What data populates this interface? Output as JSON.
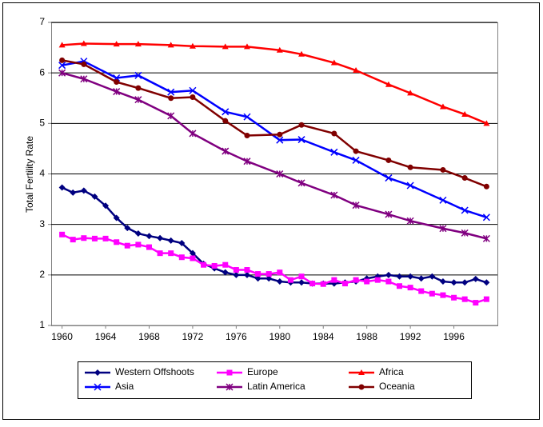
{
  "chart_data": {
    "type": "line",
    "y_label": "Total Fertility Rate",
    "xlim": [
      1959,
      2000
    ],
    "xticks": [
      1960,
      1964,
      1968,
      1972,
      1976,
      1980,
      1984,
      1988,
      1992,
      1996
    ],
    "ylim": [
      1,
      7
    ],
    "yticks": [
      1,
      2,
      3,
      4,
      5,
      6,
      7
    ],
    "grid": true,
    "legend": "bottom",
    "series": [
      {
        "name": "Western Offshoots",
        "color": "#000080",
        "marker": "diamond",
        "x": [
          1960,
          1961,
          1962,
          1963,
          1964,
          1965,
          1966,
          1967,
          1968,
          1969,
          1970,
          1971,
          1972,
          1973,
          1974,
          1975,
          1976,
          1977,
          1978,
          1979,
          1980,
          1981,
          1982,
          1983,
          1984,
          1985,
          1986,
          1987,
          1988,
          1989,
          1990,
          1991,
          1992,
          1993,
          1994,
          1995,
          1996,
          1997,
          1998,
          1999
        ],
        "values": [
          3.73,
          3.63,
          3.67,
          3.55,
          3.37,
          3.13,
          2.93,
          2.82,
          2.77,
          2.73,
          2.68,
          2.63,
          2.43,
          2.22,
          2.13,
          2.05,
          2.0,
          2.0,
          1.93,
          1.93,
          1.87,
          1.85,
          1.85,
          1.83,
          1.83,
          1.83,
          1.85,
          1.87,
          1.93,
          1.97,
          2.0,
          1.97,
          1.97,
          1.93,
          1.97,
          1.87,
          1.85,
          1.85,
          1.92,
          1.85
        ]
      },
      {
        "name": "Europe",
        "color": "#ff00ff",
        "marker": "square",
        "x": [
          1960,
          1961,
          1962,
          1963,
          1964,
          1965,
          1966,
          1967,
          1968,
          1969,
          1970,
          1971,
          1972,
          1973,
          1974,
          1975,
          1976,
          1977,
          1978,
          1979,
          1980,
          1981,
          1982,
          1983,
          1984,
          1985,
          1986,
          1987,
          1988,
          1989,
          1990,
          1991,
          1992,
          1993,
          1994,
          1995,
          1996,
          1997,
          1998,
          1999
        ],
        "values": [
          2.8,
          2.7,
          2.73,
          2.72,
          2.72,
          2.65,
          2.58,
          2.6,
          2.55,
          2.43,
          2.43,
          2.35,
          2.33,
          2.2,
          2.18,
          2.2,
          2.1,
          2.1,
          2.02,
          2.02,
          2.05,
          1.9,
          1.97,
          1.83,
          1.82,
          1.9,
          1.83,
          1.9,
          1.87,
          1.9,
          1.87,
          1.78,
          1.75,
          1.68,
          1.63,
          1.6,
          1.55,
          1.52,
          1.45,
          1.52
        ]
      },
      {
        "name": "Africa",
        "color": "#ff0000",
        "marker": "triangle",
        "x": [
          1960,
          1962,
          1965,
          1967,
          1970,
          1972,
          1975,
          1977,
          1980,
          1982,
          1985,
          1987,
          1990,
          1992,
          1995,
          1997,
          1999
        ],
        "values": [
          6.55,
          6.58,
          6.57,
          6.57,
          6.55,
          6.53,
          6.52,
          6.52,
          6.45,
          6.37,
          6.2,
          6.05,
          5.77,
          5.6,
          5.33,
          5.18,
          5.0
        ]
      },
      {
        "name": "Asia",
        "color": "#0000ff",
        "marker": "x",
        "x": [
          1960,
          1962,
          1965,
          1967,
          1970,
          1972,
          1975,
          1977,
          1980,
          1982,
          1985,
          1987,
          1990,
          1992,
          1995,
          1997,
          1999
        ],
        "values": [
          6.15,
          6.23,
          5.9,
          5.95,
          5.62,
          5.65,
          5.23,
          5.13,
          4.67,
          4.68,
          4.43,
          4.27,
          3.92,
          3.77,
          3.48,
          3.28,
          3.14
        ]
      },
      {
        "name": "Latin America",
        "color": "#800080",
        "marker": "star",
        "x": [
          1960,
          1962,
          1965,
          1967,
          1970,
          1972,
          1975,
          1977,
          1980,
          1982,
          1985,
          1987,
          1990,
          1992,
          1995,
          1997,
          1999
        ],
        "values": [
          6.0,
          5.88,
          5.63,
          5.47,
          5.15,
          4.8,
          4.45,
          4.25,
          4.0,
          3.82,
          3.58,
          3.38,
          3.2,
          3.07,
          2.92,
          2.83,
          2.72
        ]
      },
      {
        "name": "Oceania",
        "color": "#800000",
        "marker": "circle",
        "x": [
          1960,
          1962,
          1965,
          1967,
          1970,
          1972,
          1975,
          1977,
          1980,
          1982,
          1985,
          1987,
          1990,
          1992,
          1995,
          1997,
          1999
        ],
        "values": [
          6.25,
          6.17,
          5.82,
          5.7,
          5.5,
          5.52,
          5.05,
          4.76,
          4.78,
          4.97,
          4.8,
          4.45,
          4.27,
          4.13,
          4.08,
          3.92,
          3.75
        ]
      }
    ]
  }
}
